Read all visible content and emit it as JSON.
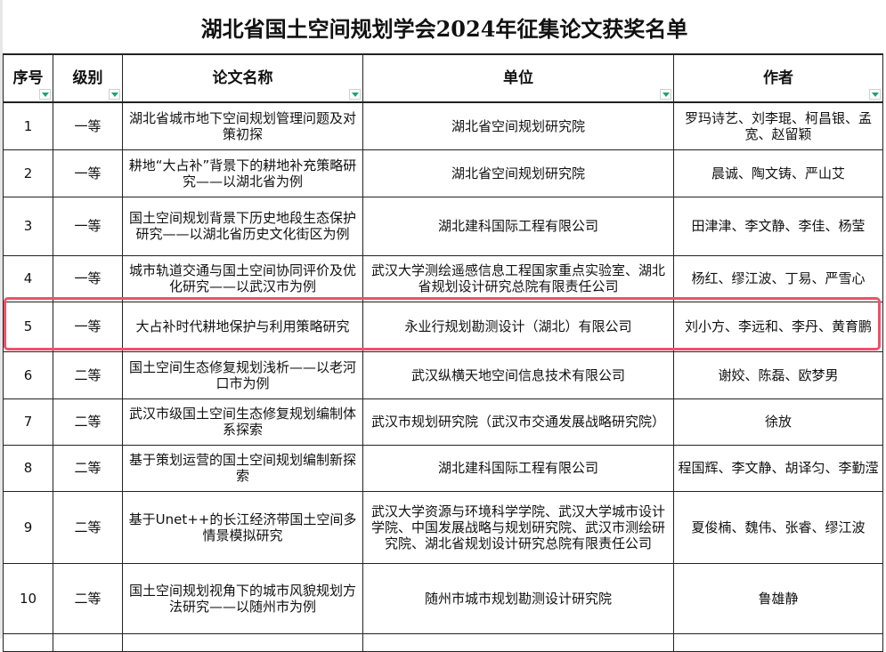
{
  "title": "湖北省国土空间规划学会2024年征集论文获奖名单",
  "headers": [
    "序号",
    "级别",
    "论文名称",
    "单位",
    "作者"
  ],
  "icons": {
    "filter": "filter-dropdown-icon",
    "filter_color": "#1fa36b",
    "highlight_color": "#f0506a"
  },
  "rows": [
    {
      "no": "1",
      "level": "一等",
      "paper": "湖北省城市地下空间规划管理问题及对策初探",
      "unit": "湖北省空间规划研究院",
      "authors": "罗玛诗艺、刘李琨、柯昌银、孟宽、赵留颖"
    },
    {
      "no": "2",
      "level": "一等",
      "paper": "耕地“大占补”背景下的耕地补充策略研究——以湖北省为例",
      "unit": "湖北省空间规划研究院",
      "authors": "晨诚、陶文铸、严山艾"
    },
    {
      "no": "3",
      "level": "一等",
      "paper": "国土空间规划背景下历史地段生态保护研究——以湖北省历史文化街区为例",
      "unit": "湖北建科国际工程有限公司",
      "authors": "田津津、李文静、李佳、杨莹"
    },
    {
      "no": "4",
      "level": "一等",
      "paper": "城市轨道交通与国土空间协同评价及优化研究——以武汉市为例",
      "unit": "武汉大学测绘遥感信息工程国家重点实验室、湖北省规划设计研究总院有限责任公司",
      "authors": "杨红、缪江波、丁易、严雪心"
    },
    {
      "no": "5",
      "level": "一等",
      "paper": "大占补时代耕地保护与利用策略研究",
      "unit": "永业行规划勘测设计（湖北）有限公司",
      "authors": "刘小方、李远和、李丹、黄育鹏"
    },
    {
      "no": "6",
      "level": "二等",
      "paper": "国土空间生态修复规划浅析——以老河口市为例",
      "unit": "武汉纵横天地空间信息技术有限公司",
      "authors": "谢姣、陈磊、欧梦男"
    },
    {
      "no": "7",
      "level": "二等",
      "paper": "武汉市级国土空间生态修复规划编制体系探索",
      "unit": "武汉市规划研究院（武汉市交通发展战略研究院）",
      "authors": "徐放"
    },
    {
      "no": "8",
      "level": "二等",
      "paper": "基于策划运营的国土空间规划编制新探索",
      "unit": "湖北建科国际工程有限公司",
      "authors": "程国辉、李文静、胡译匀、李勤滢"
    },
    {
      "no": "9",
      "level": "二等",
      "paper": "基于Unet++的长江经济带国土空间多情景模拟研究",
      "unit": "武汉大学资源与环境科学学院、武汉大学城市设计学院、中国发展战略与规划研究院、武汉市测绘研究院、湖北省规划设计研究总院有限责任公司",
      "authors": "夏俊楠、魏伟、张睿、缪江波"
    },
    {
      "no": "10",
      "level": "二等",
      "paper": "国土空间规划视角下的城市风貌规划方法研究——以随州市为例",
      "unit": "随州市城市规划勘测设计研究院",
      "authors": "鲁雄静"
    }
  ]
}
